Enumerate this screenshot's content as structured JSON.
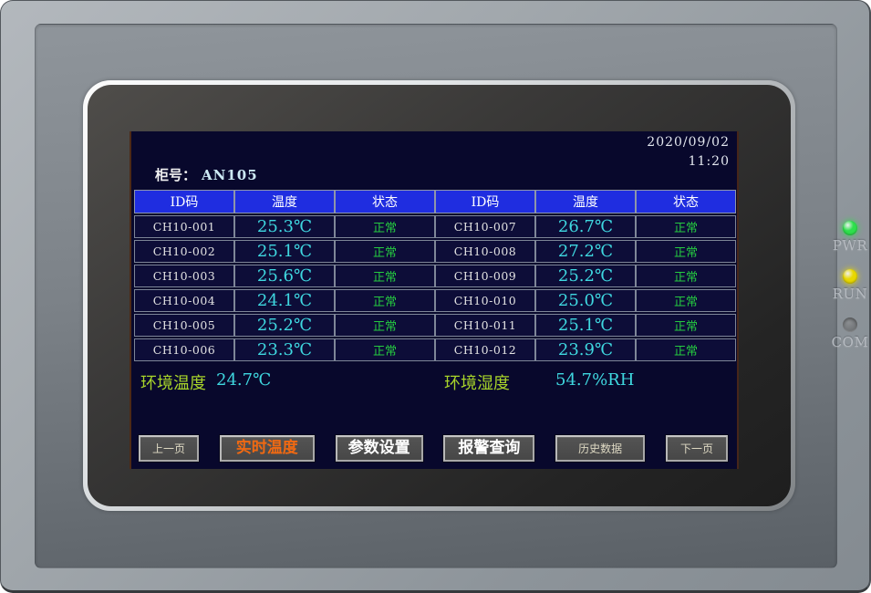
{
  "colors": {
    "screen-navy": "#08082c",
    "row-navy": "#0d0d38",
    "header-blue": "#1f2de0",
    "temp-cyan": "#3fd8e0",
    "status-green": "#25cb40",
    "ambient-green": "#a8d42a",
    "active-orange": "#f06912"
  },
  "device": {
    "leds": [
      {
        "name": "pwr",
        "label": "PWR",
        "state": "on",
        "color": "#2ee04c"
      },
      {
        "name": "run",
        "label": "RUN",
        "state": "on",
        "color": "#e8d800"
      },
      {
        "name": "com",
        "label": "COM",
        "state": "off",
        "color": "#74777a"
      }
    ]
  },
  "screen": {
    "date": "2020/09/02",
    "time": "11:20",
    "cabinet_label": "柜号：",
    "cabinet_value": "AN105",
    "table": {
      "headers": [
        "ID码",
        "温度",
        "状态",
        "ID码",
        "温度",
        "状态"
      ],
      "rows": [
        [
          "CH10-001",
          "25.3℃",
          "正常",
          "CH10-007",
          "26.7℃",
          "正常"
        ],
        [
          "CH10-002",
          "25.1℃",
          "正常",
          "CH10-008",
          "27.2℃",
          "正常"
        ],
        [
          "CH10-003",
          "25.6℃",
          "正常",
          "CH10-009",
          "25.2℃",
          "正常"
        ],
        [
          "CH10-004",
          "24.1℃",
          "正常",
          "CH10-010",
          "25.0℃",
          "正常"
        ],
        [
          "CH10-005",
          "25.2℃",
          "正常",
          "CH10-011",
          "25.1℃",
          "正常"
        ],
        [
          "CH10-006",
          "23.3℃",
          "正常",
          "CH10-012",
          "23.9℃",
          "正常"
        ]
      ]
    },
    "ambient": {
      "temp_label": "环境温度",
      "temp_value": "24.7℃",
      "hum_label": "环境湿度",
      "hum_value": "54.7%RH"
    },
    "buttons": [
      {
        "name": "prev-page",
        "label": "上一页",
        "size": "small",
        "active": false
      },
      {
        "name": "realtime-temp",
        "label": "实时温度",
        "size": "small",
        "active": true
      },
      {
        "name": "param-settings",
        "label": "参数设置",
        "size": "large",
        "active": false
      },
      {
        "name": "alarm-query",
        "label": "报警查询",
        "size": "large",
        "active": false
      },
      {
        "name": "history-data",
        "label": "历史数据",
        "size": "small",
        "active": false
      },
      {
        "name": "next-page",
        "label": "下一页",
        "size": "small",
        "active": false
      }
    ]
  }
}
